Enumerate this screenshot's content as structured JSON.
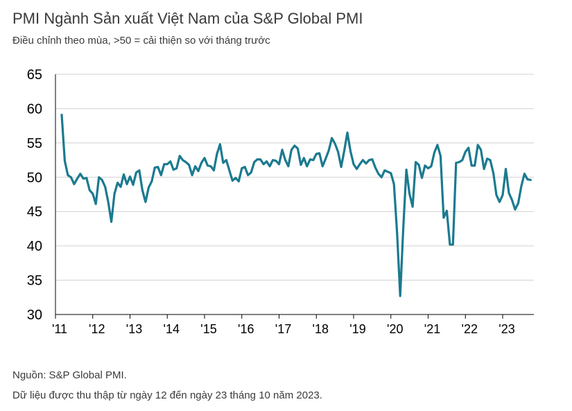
{
  "header": {
    "title": "PMI Ngành Sản xuất Việt Nam của S&P Global PMI",
    "subtitle": "Điều chỉnh theo mùa, >50 = cải thiện so với tháng trước"
  },
  "footer": {
    "source": "Nguồn: S&P Global PMI.",
    "note": "Dữ liệu được thu thập từ ngày 12 đến ngày 23 tháng 10 năm 2023."
  },
  "colors": {
    "line": "#1b7a8f",
    "grid": "#d0d0d0",
    "axis": "#000000"
  },
  "chart_data": {
    "type": "line",
    "title": "PMI Ngành Sản xuất Việt Nam của S&P Global PMI",
    "xlabel": "",
    "ylabel": "",
    "ylim": [
      30,
      65
    ],
    "yticks": [
      30,
      35,
      40,
      45,
      50,
      55,
      60,
      65
    ],
    "xlim": [
      "2011-03",
      "2023-10"
    ],
    "xticks": [
      {
        "label": "'11",
        "date": "2011-01"
      },
      {
        "label": "'12",
        "date": "2012-01"
      },
      {
        "label": "'13",
        "date": "2013-01"
      },
      {
        "label": "'14",
        "date": "2014-01"
      },
      {
        "label": "'15",
        "date": "2015-01"
      },
      {
        "label": "'16",
        "date": "2016-01"
      },
      {
        "label": "'17",
        "date": "2017-01"
      },
      {
        "label": "'18",
        "date": "2018-01"
      },
      {
        "label": "'19",
        "date": "2019-01"
      },
      {
        "label": "'20",
        "date": "2020-01"
      },
      {
        "label": "'21",
        "date": "2021-01"
      },
      {
        "label": "'22",
        "date": "2022-01"
      },
      {
        "label": "'23",
        "date": "2023-01"
      }
    ],
    "grid": "horizontal",
    "series": [
      {
        "values": [
          [
            "2011-03",
            59.1
          ],
          [
            "2011-04",
            52.4
          ],
          [
            "2011-05",
            50.3
          ],
          [
            "2011-06",
            50.0
          ],
          [
            "2011-07",
            49.0
          ],
          [
            "2011-08",
            49.8
          ],
          [
            "2011-09",
            50.5
          ],
          [
            "2011-10",
            49.8
          ],
          [
            "2011-11",
            49.9
          ],
          [
            "2011-12",
            48.1
          ],
          [
            "2012-01",
            47.6
          ],
          [
            "2012-02",
            46.1
          ],
          [
            "2012-03",
            50.0
          ],
          [
            "2012-04",
            49.6
          ],
          [
            "2012-05",
            48.6
          ],
          [
            "2012-06",
            46.4
          ],
          [
            "2012-07",
            43.5
          ],
          [
            "2012-08",
            47.6
          ],
          [
            "2012-09",
            49.2
          ],
          [
            "2012-10",
            48.6
          ],
          [
            "2012-11",
            50.4
          ],
          [
            "2012-12",
            49.0
          ],
          [
            "2013-01",
            50.1
          ],
          [
            "2013-02",
            48.9
          ],
          [
            "2013-03",
            50.7
          ],
          [
            "2013-04",
            51.0
          ],
          [
            "2013-05",
            48.1
          ],
          [
            "2013-06",
            46.4
          ],
          [
            "2013-07",
            48.5
          ],
          [
            "2013-08",
            49.4
          ],
          [
            "2013-09",
            51.4
          ],
          [
            "2013-10",
            51.5
          ],
          [
            "2013-11",
            50.3
          ],
          [
            "2013-12",
            51.9
          ],
          [
            "2014-01",
            51.9
          ],
          [
            "2014-02",
            52.3
          ],
          [
            "2014-03",
            51.1
          ],
          [
            "2014-04",
            51.3
          ],
          [
            "2014-05",
            53.1
          ],
          [
            "2014-06",
            52.5
          ],
          [
            "2014-07",
            52.2
          ],
          [
            "2014-08",
            51.8
          ],
          [
            "2014-09",
            50.3
          ],
          [
            "2014-10",
            51.6
          ],
          [
            "2014-11",
            50.9
          ],
          [
            "2014-12",
            52.1
          ],
          [
            "2015-01",
            52.8
          ],
          [
            "2015-02",
            51.7
          ],
          [
            "2015-03",
            51.6
          ],
          [
            "2015-04",
            51.0
          ],
          [
            "2015-05",
            53.4
          ],
          [
            "2015-06",
            54.8
          ],
          [
            "2015-07",
            52.1
          ],
          [
            "2015-08",
            52.5
          ],
          [
            "2015-09",
            51.0
          ],
          [
            "2015-10",
            49.5
          ],
          [
            "2015-11",
            49.9
          ],
          [
            "2015-12",
            49.4
          ],
          [
            "2016-01",
            51.3
          ],
          [
            "2016-02",
            51.5
          ],
          [
            "2016-03",
            50.3
          ],
          [
            "2016-04",
            50.7
          ],
          [
            "2016-05",
            52.2
          ],
          [
            "2016-06",
            52.6
          ],
          [
            "2016-07",
            52.6
          ],
          [
            "2016-08",
            51.9
          ],
          [
            "2016-09",
            52.3
          ],
          [
            "2016-10",
            51.6
          ],
          [
            "2016-11",
            52.5
          ],
          [
            "2016-12",
            52.4
          ],
          [
            "2017-01",
            51.9
          ],
          [
            "2017-02",
            54.0
          ],
          [
            "2017-03",
            52.5
          ],
          [
            "2017-04",
            51.6
          ],
          [
            "2017-05",
            54.0
          ],
          [
            "2017-06",
            54.6
          ],
          [
            "2017-07",
            54.2
          ],
          [
            "2017-08",
            51.8
          ],
          [
            "2017-09",
            52.8
          ],
          [
            "2017-10",
            51.6
          ],
          [
            "2017-11",
            52.6
          ],
          [
            "2017-12",
            52.5
          ],
          [
            "2018-01",
            53.4
          ],
          [
            "2018-02",
            53.5
          ],
          [
            "2018-03",
            51.6
          ],
          [
            "2018-04",
            52.7
          ],
          [
            "2018-05",
            53.9
          ],
          [
            "2018-06",
            55.7
          ],
          [
            "2018-07",
            54.9
          ],
          [
            "2018-08",
            53.7
          ],
          [
            "2018-09",
            51.5
          ],
          [
            "2018-10",
            53.9
          ],
          [
            "2018-11",
            56.5
          ],
          [
            "2018-12",
            53.8
          ],
          [
            "2019-01",
            51.9
          ],
          [
            "2019-02",
            51.2
          ],
          [
            "2019-03",
            51.9
          ],
          [
            "2019-04",
            52.5
          ],
          [
            "2019-05",
            52.0
          ],
          [
            "2019-06",
            52.5
          ],
          [
            "2019-07",
            52.6
          ],
          [
            "2019-08",
            51.4
          ],
          [
            "2019-09",
            50.5
          ],
          [
            "2019-10",
            50.0
          ],
          [
            "2019-11",
            51.0
          ],
          [
            "2019-12",
            50.8
          ],
          [
            "2020-01",
            50.6
          ],
          [
            "2020-02",
            49.0
          ],
          [
            "2020-03",
            41.9
          ],
          [
            "2020-04",
            32.7
          ],
          [
            "2020-05",
            42.7
          ],
          [
            "2020-06",
            51.1
          ],
          [
            "2020-07",
            47.6
          ],
          [
            "2020-08",
            45.7
          ],
          [
            "2020-09",
            52.2
          ],
          [
            "2020-10",
            51.8
          ],
          [
            "2020-11",
            49.9
          ],
          [
            "2020-12",
            51.7
          ],
          [
            "2021-01",
            51.3
          ],
          [
            "2021-02",
            51.6
          ],
          [
            "2021-03",
            53.6
          ],
          [
            "2021-04",
            54.7
          ],
          [
            "2021-05",
            53.1
          ],
          [
            "2021-06",
            44.1
          ],
          [
            "2021-07",
            45.1
          ],
          [
            "2021-08",
            40.2
          ],
          [
            "2021-09",
            40.2
          ],
          [
            "2021-10",
            52.1
          ],
          [
            "2021-11",
            52.2
          ],
          [
            "2021-12",
            52.5
          ],
          [
            "2022-01",
            53.7
          ],
          [
            "2022-02",
            54.3
          ],
          [
            "2022-03",
            51.7
          ],
          [
            "2022-04",
            51.7
          ],
          [
            "2022-05",
            54.7
          ],
          [
            "2022-06",
            54.0
          ],
          [
            "2022-07",
            51.2
          ],
          [
            "2022-08",
            52.7
          ],
          [
            "2022-09",
            52.5
          ],
          [
            "2022-10",
            50.6
          ],
          [
            "2022-11",
            47.4
          ],
          [
            "2022-12",
            46.4
          ],
          [
            "2023-01",
            47.4
          ],
          [
            "2023-02",
            51.2
          ],
          [
            "2023-03",
            47.7
          ],
          [
            "2023-04",
            46.7
          ],
          [
            "2023-05",
            45.3
          ],
          [
            "2023-06",
            46.2
          ],
          [
            "2023-07",
            48.7
          ],
          [
            "2023-08",
            50.5
          ],
          [
            "2023-09",
            49.7
          ],
          [
            "2023-10",
            49.6
          ]
        ]
      }
    ]
  }
}
